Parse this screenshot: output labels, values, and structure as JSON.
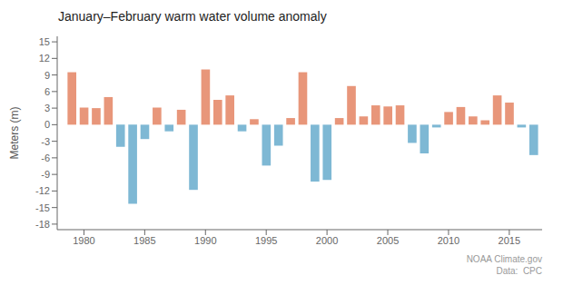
{
  "chart_data": {
    "type": "bar",
    "title": "January–February warm water volume anomaly",
    "ylabel": "Meters (m)",
    "annotations": [
      "NOAA Climate.gov",
      "Data:  CPC"
    ],
    "x": [
      1979,
      1980,
      1981,
      1982,
      1983,
      1984,
      1985,
      1986,
      1987,
      1988,
      1989,
      1990,
      1991,
      1992,
      1993,
      1994,
      1995,
      1996,
      1997,
      1998,
      1999,
      2000,
      2001,
      2002,
      2003,
      2004,
      2005,
      2006,
      2007,
      2008,
      2009,
      2010,
      2011,
      2012,
      2013,
      2014,
      2015,
      2016,
      2017
    ],
    "values": [
      9.5,
      3.1,
      3.0,
      5.0,
      -4.0,
      -14.3,
      -2.6,
      3.1,
      -1.2,
      2.7,
      -11.8,
      10.0,
      4.5,
      5.3,
      -1.2,
      1.0,
      -7.4,
      -3.8,
      1.2,
      9.5,
      -10.3,
      -10.0,
      1.2,
      7.0,
      1.5,
      3.5,
      3.3,
      3.5,
      -3.3,
      -5.2,
      -0.5,
      2.3,
      3.2,
      1.5,
      0.8,
      5.3,
      4.0,
      -0.5,
      -5.5
    ],
    "colors": [
      "#e8967a",
      "#e8967a",
      "#e8967a",
      "#e8967a",
      "#7eb8d4",
      "#7eb8d4",
      "#7eb8d4",
      "#e8967a",
      "#7eb8d4",
      "#e8967a",
      "#7eb8d4",
      "#e8967a",
      "#e8967a",
      "#e8967a",
      "#7eb8d4",
      "#e8967a",
      "#7eb8d4",
      "#7eb8d4",
      "#e8967a",
      "#e8967a",
      "#7eb8d4",
      "#7eb8d4",
      "#e8967a",
      "#e8967a",
      "#e8967a",
      "#e8967a",
      "#e8967a",
      "#e8967a",
      "#7eb8d4",
      "#7eb8d4",
      "#7eb8d4",
      "#e8967a",
      "#e8967a",
      "#e8967a",
      "#e8967a",
      "#e8967a",
      "#e8967a",
      "#7eb8d4",
      "#7eb8d4"
    ],
    "xlim": [
      1977.8,
      2017.7
    ],
    "xticks": [
      1980,
      1985,
      1990,
      1995,
      2000,
      2005,
      2010,
      2015
    ],
    "ylim": [
      -19,
      16
    ],
    "yticks": [
      -18,
      -15,
      -12,
      -9,
      -6,
      -3,
      0,
      3,
      6,
      9,
      12,
      15
    ],
    "grid": false
  }
}
